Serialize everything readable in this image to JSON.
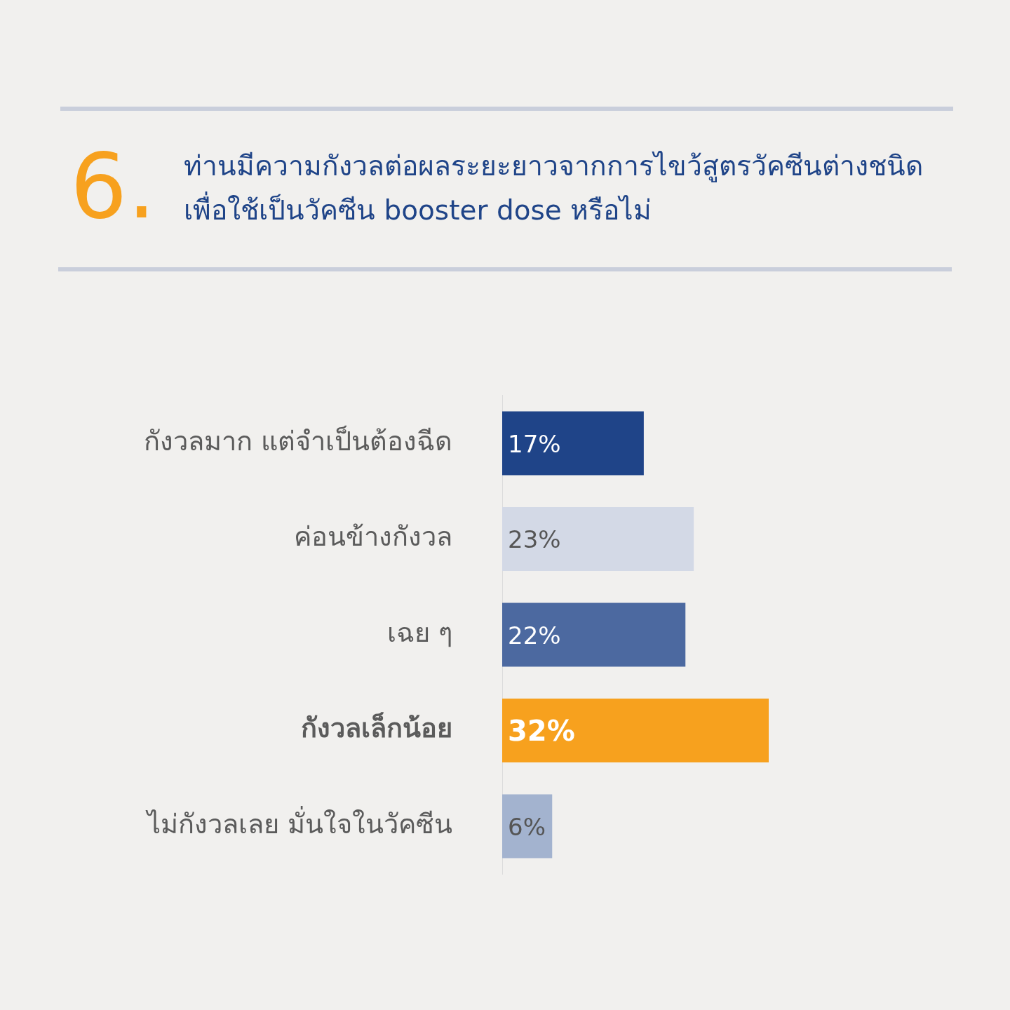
{
  "chart_data": {
    "type": "bar",
    "orientation": "horizontal",
    "title": "6.",
    "subtitle": "ท่านมีความกังวลต่อผลระยะยาวจากการไขว้สูตรวัคซีนต่างชนิด เพื่อใช้เป็นวัคซีน booster dose หรือไม่",
    "categories": [
      "กังวลมาก แต่จำเป็นต้องฉีด",
      "ค่อนข้างกังวล",
      "เฉย ๆ",
      "กังวลเล็กน้อย",
      "ไม่กังวลเลย มั่นใจในวัคซีน"
    ],
    "values": [
      17,
      23,
      22,
      32,
      6
    ],
    "colors": [
      "#1f4488",
      "#d3d9e6",
      "#4c69a0",
      "#f7a11e",
      "#a3b3cf"
    ],
    "value_labels": [
      "17%",
      "23%",
      "22%",
      "32%",
      "6%"
    ]
  }
}
